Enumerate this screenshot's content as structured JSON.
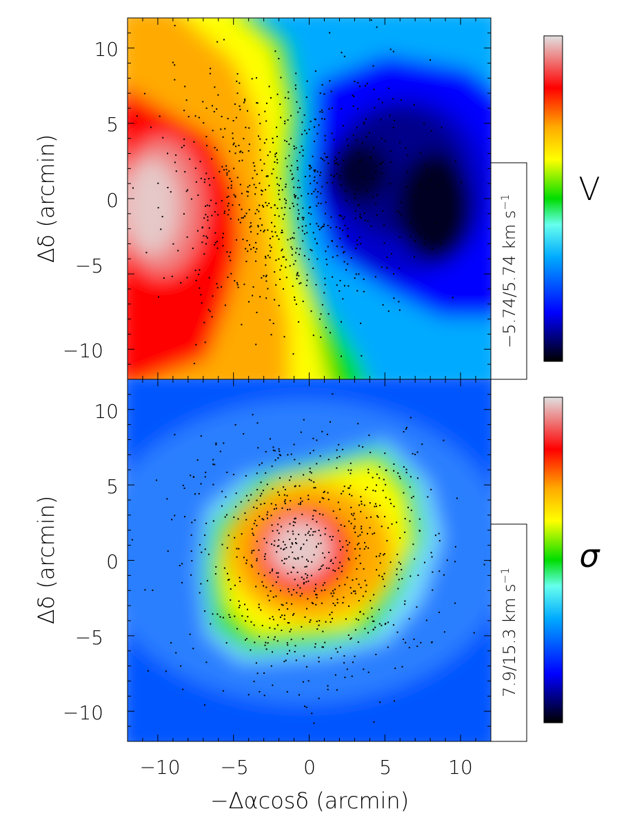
{
  "chart_data": [
    {
      "type": "heatmap",
      "panel": "top",
      "quantity_symbol": "V",
      "range_label": "−5.74/5.74 km s",
      "range_unit_exp": "−1",
      "vmin": -5.74,
      "vmax": 5.74,
      "xlim": [
        -12,
        12
      ],
      "ylim": [
        -12,
        12
      ],
      "xticks": [
        "−10",
        "−5",
        "0",
        "5",
        "10"
      ],
      "yticks": [
        "−10",
        "−5",
        "0",
        "5",
        "10"
      ],
      "xlabel": "",
      "ylabel": "Δδ (arcmin)",
      "colormap": [
        "#000000",
        "#0000ff",
        "#00aaff",
        "#66ffee",
        "#00dd00",
        "#ffff00",
        "#ffaa00",
        "#ff0000",
        "#e0e0e0"
      ],
      "features": [
        {
          "label": "max",
          "x": -10,
          "y": -1,
          "value": 5.74
        },
        {
          "label": "min",
          "x": 8,
          "y": 0,
          "value": -5.74
        }
      ]
    },
    {
      "type": "heatmap",
      "panel": "bottom",
      "quantity_symbol": "σ",
      "range_label": "7.9/15.3 km s",
      "range_unit_exp": "−1",
      "vmin": 7.9,
      "vmax": 15.3,
      "xlim": [
        -12,
        12
      ],
      "ylim": [
        -12,
        12
      ],
      "xticks": [
        "−10",
        "−5",
        "0",
        "5",
        "10"
      ],
      "yticks": [
        "−10",
        "−5",
        "0",
        "5",
        "10"
      ],
      "xlabel": "−Δαcosδ (arcmin)",
      "ylabel": "Δδ (arcmin)",
      "colormap": [
        "#000000",
        "#0000ff",
        "#00aaff",
        "#66ffee",
        "#00dd00",
        "#ffff00",
        "#ffaa00",
        "#ff0000",
        "#e0e0e0"
      ],
      "features": [
        {
          "label": "max",
          "x": -1,
          "y": 1,
          "value": 15.3
        }
      ]
    }
  ]
}
